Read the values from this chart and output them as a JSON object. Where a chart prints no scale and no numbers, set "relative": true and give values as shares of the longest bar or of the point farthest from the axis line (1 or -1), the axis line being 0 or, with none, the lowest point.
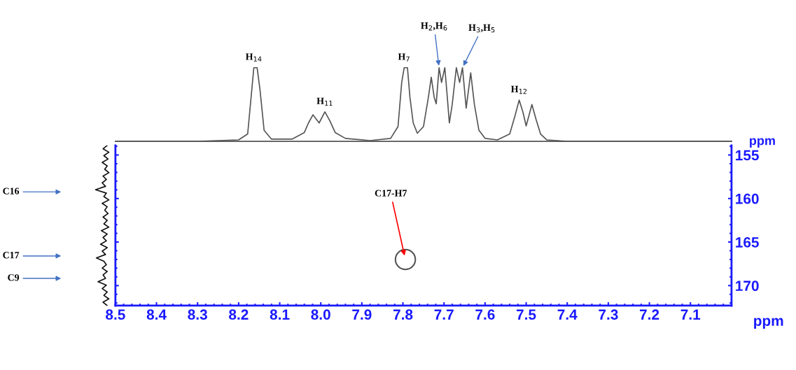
{
  "chart_data": [
    {
      "type": "line",
      "relative": true,
      "tick_labels": false,
      "xlim": [
        8.5,
        7.0
      ],
      "xticks": [
        8.5,
        8.4,
        8.3,
        8.2,
        8.1,
        8.0,
        7.9,
        7.8,
        7.7,
        7.6,
        7.5,
        7.4,
        7.3,
        7.2,
        7.1
      ],
      "series": [
        {
          "color": "#555555",
          "x": [
            8.5,
            8.3,
            8.2,
            8.178,
            8.168,
            8.163,
            8.155,
            8.148,
            8.138,
            8.12,
            8.07,
            8.04,
            8.03,
            8.019,
            8.004,
            7.99,
            7.978,
            7.965,
            7.94,
            7.88,
            7.83,
            7.812,
            7.803,
            7.797,
            7.789,
            7.783,
            7.775,
            7.765,
            7.75,
            7.738,
            7.731,
            7.724,
            7.719,
            7.712,
            7.706,
            7.698,
            7.692,
            7.687,
            7.68,
            7.67,
            7.662,
            7.655,
            7.646,
            7.635,
            7.626,
            7.615,
            7.6,
            7.57,
            7.54,
            7.527,
            7.517,
            7.508,
            7.5,
            7.486,
            7.476,
            7.465,
            7.45,
            7.4,
            7.2,
            7.0
          ],
          "values": [
            0,
            0,
            0.02,
            0.1,
            0.7,
            1,
            1,
            0.7,
            0.15,
            0.03,
            0.03,
            0.12,
            0.25,
            0.36,
            0.25,
            0.4,
            0.28,
            0.12,
            0.04,
            0.01,
            0.04,
            0.2,
            0.8,
            1,
            1,
            0.6,
            0.25,
            0.11,
            0.2,
            0.6,
            0.87,
            0.6,
            0.51,
            1,
            0.8,
            1,
            0.6,
            0.25,
            0.5,
            1,
            0.8,
            1,
            0.45,
            0.93,
            0.5,
            0.15,
            0.04,
            0.02,
            0.1,
            0.35,
            0.56,
            0.4,
            0.21,
            0.5,
            0.3,
            0.1,
            0.02,
            0,
            0,
            0
          ]
        }
      ],
      "annotations": [
        {
          "text": "H$_{14}$",
          "x": 8.163,
          "y": 1
        },
        {
          "text": "H$_{11}$",
          "x": 7.99,
          "y": 0.4
        },
        {
          "text": "H$_{7}$",
          "x": 7.797,
          "y": 1
        },
        {
          "text": "H$_{2}$,H$_{6}$",
          "x": 7.712,
          "y": 1
        },
        {
          "text": "H$_{3}$,H$_{5}$",
          "x": 7.655,
          "y": 1
        },
        {
          "text": "H$_{12}$",
          "x": 7.517,
          "y": 0.56
        }
      ]
    },
    {
      "type": "scatter",
      "xlim": [
        8.5,
        7.0
      ],
      "ylim": [
        172.3,
        153.9
      ],
      "xticks": [
        8.5,
        8.4,
        8.3,
        8.2,
        8.1,
        {
          "value": 8.0,
          "label": "8.0"
        },
        7.9,
        7.8,
        7.7,
        7.6,
        7.5,
        7.4,
        7.3,
        7.2,
        7.1
      ],
      "yticks": [
        155,
        160,
        165,
        170
      ],
      "xlabel": "ppm",
      "ylabel": "ppm",
      "marker": "circle",
      "series": [
        {
          "color": "#555555",
          "x": [
            7.794
          ],
          "values": [
            167.0
          ]
        }
      ],
      "annotations": [
        {
          "text": "C17-H7",
          "x": 7.794,
          "y": 167.0
        },
        "C16",
        "C17",
        "C9"
      ]
    }
  ]
}
